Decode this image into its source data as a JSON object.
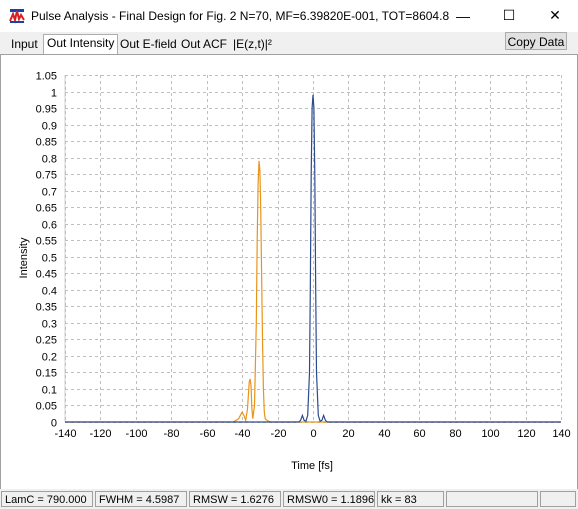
{
  "window": {
    "title": "Pulse Analysis - Final Design for Fig. 2  N=70, MF=6.39820E-001, TOT=8604.8",
    "icon": "pulse-chart-app-icon",
    "controls": {
      "minimize": "—",
      "maximize": "☐",
      "close": "✕"
    }
  },
  "tabs": [
    {
      "label": "Input",
      "active": false
    },
    {
      "label": "Out Intensity",
      "active": true
    },
    {
      "label": "Out E-field",
      "active": false
    },
    {
      "label": "Out ACF",
      "active": false
    },
    {
      "label": "|E(z,t)|²",
      "active": false
    }
  ],
  "toolbar": {
    "copy_label": "Copy Data"
  },
  "chart_data": {
    "type": "line",
    "title": "",
    "xlabel": "Time [fs]",
    "ylabel": "Intensity",
    "xlim": [
      -140,
      140
    ],
    "ylim": [
      0,
      1.05
    ],
    "x_ticks": [
      -140,
      -120,
      -100,
      -80,
      -60,
      -40,
      -20,
      0,
      20,
      40,
      60,
      80,
      100,
      120,
      140
    ],
    "y_ticks": [
      0,
      0.05,
      0.1,
      0.15,
      0.2,
      0.25,
      0.3,
      0.35,
      0.4,
      0.45,
      0.5,
      0.55,
      0.6,
      0.65,
      0.7,
      0.75,
      0.8,
      0.85,
      0.9,
      0.95,
      1,
      1.05
    ],
    "grid": true,
    "series": [
      {
        "color": "#e8941a",
        "x": [
          -140,
          -45,
          -42,
          -40,
          -39,
          -38,
          -37,
          -36,
          -35.5,
          -35,
          -34.5,
          -34,
          -33,
          -32,
          -31.5,
          -31,
          -30.5,
          -30,
          -29.5,
          -29,
          -28.5,
          -28,
          -27.5,
          -27,
          -26,
          -24,
          140
        ],
        "y": [
          0,
          0,
          0.01,
          0.03,
          0.02,
          0.005,
          0.04,
          0.12,
          0.13,
          0.11,
          0.04,
          0.01,
          0.05,
          0.3,
          0.55,
          0.72,
          0.79,
          0.76,
          0.65,
          0.45,
          0.25,
          0.1,
          0.03,
          0.01,
          0.005,
          0,
          0
        ]
      },
      {
        "color": "#2b4b8c",
        "x": [
          -140,
          -8,
          -7,
          -6,
          -5,
          -4,
          -3,
          -2,
          -1.5,
          -1,
          -0.5,
          0,
          0.5,
          1,
          1.5,
          2,
          3,
          4,
          5,
          6,
          7,
          8,
          140
        ],
        "y": [
          0,
          0,
          0.005,
          0.02,
          0.005,
          0.002,
          0.02,
          0.15,
          0.4,
          0.75,
          0.95,
          0.99,
          0.95,
          0.75,
          0.4,
          0.15,
          0.02,
          0.002,
          0.005,
          0.02,
          0.005,
          0,
          0
        ]
      }
    ]
  },
  "status": [
    "LamC = 790.000",
    "FWHM = 4.5987",
    "RMSW = 1.6276",
    "RMSW0 = 1.1896",
    "kk = 83",
    "",
    ""
  ]
}
